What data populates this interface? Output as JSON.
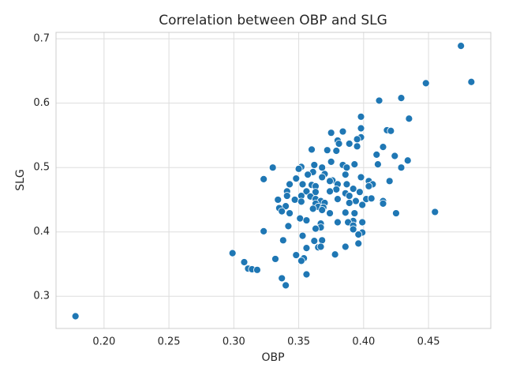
{
  "chart_data": {
    "type": "scatter",
    "title": "Correlation between OBP and SLG",
    "x_label": "OBP",
    "y_label": "SLG",
    "color": "#1f77b4",
    "grid": true,
    "xlim": [
      0.163,
      0.498
    ],
    "ylim": [
      0.25,
      0.71
    ],
    "xticks": [
      {
        "value": 0.2,
        "label": "0.20"
      },
      {
        "value": 0.25,
        "label": "0.25"
      },
      {
        "value": 0.3,
        "label": "0.30"
      },
      {
        "value": 0.35,
        "label": "0.35"
      },
      {
        "value": 0.4,
        "label": "0.40"
      },
      {
        "value": 0.45,
        "label": "0.45"
      }
    ],
    "yticks": [
      0.3,
      0.4,
      0.5,
      0.6,
      0.7
    ],
    "x": [
      0.178,
      0.475,
      0.483,
      0.448,
      0.429,
      0.412,
      0.435,
      0.398,
      0.398,
      0.418,
      0.421,
      0.384,
      0.375,
      0.398,
      0.395,
      0.38,
      0.389,
      0.381,
      0.415,
      0.395,
      0.36,
      0.372,
      0.379,
      0.41,
      0.424,
      0.434,
      0.375,
      0.411,
      0.393,
      0.384,
      0.362,
      0.33,
      0.352,
      0.368,
      0.387,
      0.429,
      0.35,
      0.361,
      0.37,
      0.357,
      0.386,
      0.368,
      0.398,
      0.348,
      0.323,
      0.376,
      0.404,
      0.42,
      0.374,
      0.38,
      0.387,
      0.407,
      0.353,
      0.343,
      0.36,
      0.363,
      0.404,
      0.392,
      0.379,
      0.341,
      0.356,
      0.397,
      0.363,
      0.374,
      0.386,
      0.341,
      0.352,
      0.389,
      0.359,
      0.402,
      0.38,
      0.363,
      0.406,
      0.347,
      0.334,
      0.367,
      0.352,
      0.394,
      0.415,
      0.415,
      0.37,
      0.389,
      0.363,
      0.399,
      0.34,
      0.365,
      0.335,
      0.369,
      0.361,
      0.337,
      0.368,
      0.374,
      0.386,
      0.393,
      0.425,
      0.455,
      0.343,
      0.351,
      0.356,
      0.392,
      0.38,
      0.388,
      0.399,
      0.367,
      0.392,
      0.342,
      0.367,
      0.363,
      0.392,
      0.323,
      0.399,
      0.396,
      0.353,
      0.338,
      0.368,
      0.362,
      0.356,
      0.396,
      0.365,
      0.367,
      0.386,
      0.299,
      0.348,
      0.378,
      0.354,
      0.352,
      0.332,
      0.308,
      0.311,
      0.314,
      0.318,
      0.356,
      0.337,
      0.34
    ],
    "y": [
      0.269,
      0.689,
      0.633,
      0.631,
      0.608,
      0.604,
      0.576,
      0.579,
      0.561,
      0.558,
      0.557,
      0.556,
      0.554,
      0.547,
      0.544,
      0.542,
      0.537,
      0.537,
      0.532,
      0.533,
      0.528,
      0.527,
      0.526,
      0.52,
      0.518,
      0.511,
      0.509,
      0.505,
      0.505,
      0.504,
      0.504,
      0.5,
      0.501,
      0.5,
      0.5,
      0.5,
      0.498,
      0.493,
      0.49,
      0.489,
      0.489,
      0.485,
      0.485,
      0.483,
      0.482,
      0.48,
      0.479,
      0.479,
      0.479,
      0.474,
      0.474,
      0.474,
      0.474,
      0.474,
      0.473,
      0.471,
      0.471,
      0.467,
      0.466,
      0.463,
      0.463,
      0.462,
      0.462,
      0.463,
      0.46,
      0.456,
      0.456,
      0.456,
      0.455,
      0.451,
      0.451,
      0.451,
      0.452,
      0.45,
      0.45,
      0.448,
      0.447,
      0.448,
      0.448,
      0.444,
      0.445,
      0.445,
      0.444,
      0.442,
      0.44,
      0.439,
      0.437,
      0.438,
      0.436,
      0.432,
      0.434,
      0.429,
      0.43,
      0.429,
      0.429,
      0.431,
      0.429,
      0.421,
      0.418,
      0.417,
      0.415,
      0.415,
      0.415,
      0.413,
      0.41,
      0.409,
      0.407,
      0.405,
      0.404,
      0.401,
      0.399,
      0.396,
      0.394,
      0.387,
      0.387,
      0.386,
      0.375,
      0.382,
      0.376,
      0.377,
      0.377,
      0.367,
      0.364,
      0.365,
      0.359,
      0.355,
      0.358,
      0.353,
      0.343,
      0.342,
      0.341,
      0.334,
      0.328,
      0.317
    ]
  }
}
